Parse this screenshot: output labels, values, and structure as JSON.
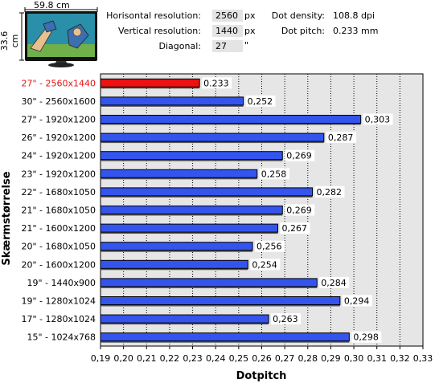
{
  "calculator": {
    "width_cm": "59.8 cm",
    "height_cm": "33.6 cm",
    "horizontal_label": "Horisontal resolution:",
    "horizontal_value": "2560",
    "horizontal_unit": "px",
    "vertical_label": "Vertical resolution:",
    "vertical_value": "1440",
    "vertical_unit": "px",
    "diagonal_label": "Diagonal:",
    "diagonal_value": "27",
    "diagonal_unit": "\"",
    "density_label": "Dot density:",
    "density_value": "108.8 dpi",
    "pitch_label": "Dot pitch:",
    "pitch_value": "0.233 mm"
  },
  "colors": {
    "highlight": "#ee1111",
    "bar": "#3355ee",
    "plot_bg": "#e6e6e6",
    "highlight_label": "#ee1111"
  },
  "chart_data": {
    "type": "bar",
    "orientation": "horizontal",
    "xlabel": "Dotpitch",
    "ylabel": "Skærmstørrelse",
    "xlim": [
      0.19,
      0.33
    ],
    "xticks": [
      "0,19",
      "0,20",
      "0,21",
      "0,22",
      "0,23",
      "0,24",
      "0,25",
      "0,26",
      "0,27",
      "0,28",
      "0,29",
      "0,30",
      "0,31",
      "0,32",
      "0,33"
    ],
    "grid": true,
    "categories": [
      "27\" - 2560x1440",
      "30\" - 2560x1600",
      "27\" - 1920x1200",
      "26\" - 1920x1200",
      "24\" - 1920x1200",
      "23\" - 1920x1200",
      "22\" - 1680x1050",
      "21\" - 1680x1050",
      "21\" - 1600x1200",
      "20\" - 1680x1050",
      "20\" - 1600x1200",
      "19\" - 1440x900",
      "19\" - 1280x1024",
      "17\" - 1280x1024",
      "15\" - 1024x768"
    ],
    "values": [
      0.233,
      0.252,
      0.303,
      0.287,
      0.269,
      0.258,
      0.282,
      0.269,
      0.267,
      0.256,
      0.254,
      0.284,
      0.294,
      0.263,
      0.298
    ],
    "value_labels": [
      "0.233",
      "0,252",
      "0,303",
      "0,287",
      "0,269",
      "0,258",
      "0,282",
      "0,269",
      "0,267",
      "0,256",
      "0,254",
      "0,284",
      "0,294",
      "0,263",
      "0,298"
    ],
    "highlight_index": 0
  }
}
